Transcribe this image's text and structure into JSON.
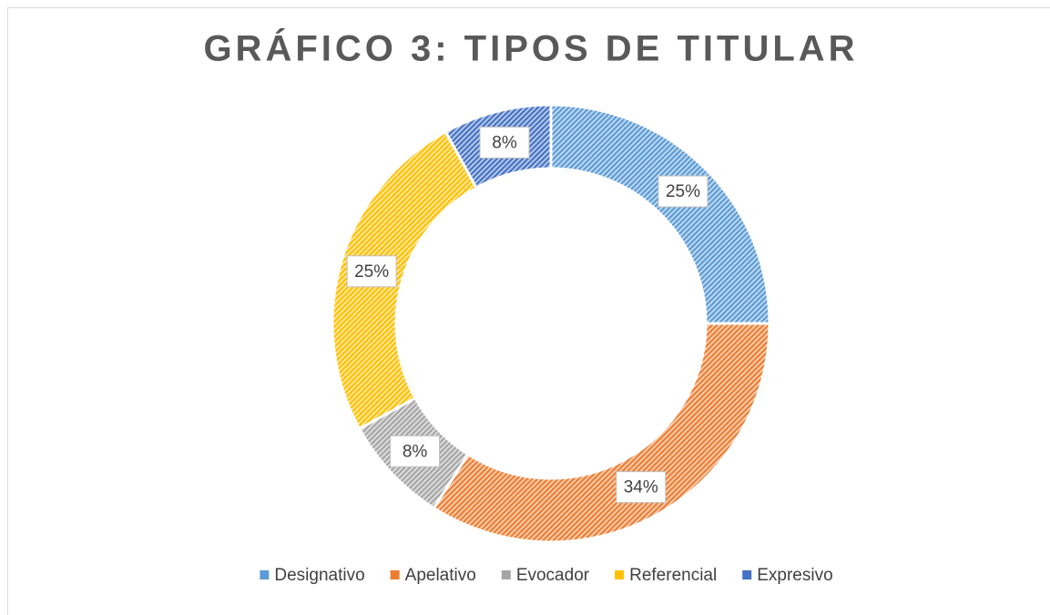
{
  "chart_data": {
    "type": "donut",
    "title": "GRÁFICO 3: TIPOS DE TITULAR",
    "categories": [
      "Designativo",
      "Apelativo",
      "Evocador",
      "Referencial",
      "Expresivo"
    ],
    "values": [
      25,
      34,
      8,
      25,
      8
    ],
    "value_labels": [
      "25%",
      "34%",
      "8%",
      "25%",
      "8%"
    ],
    "colors": [
      "#5b9bd5",
      "#ed7d31",
      "#a5a5a5",
      "#ffc000",
      "#4472c4"
    ],
    "legend": "bottom"
  }
}
